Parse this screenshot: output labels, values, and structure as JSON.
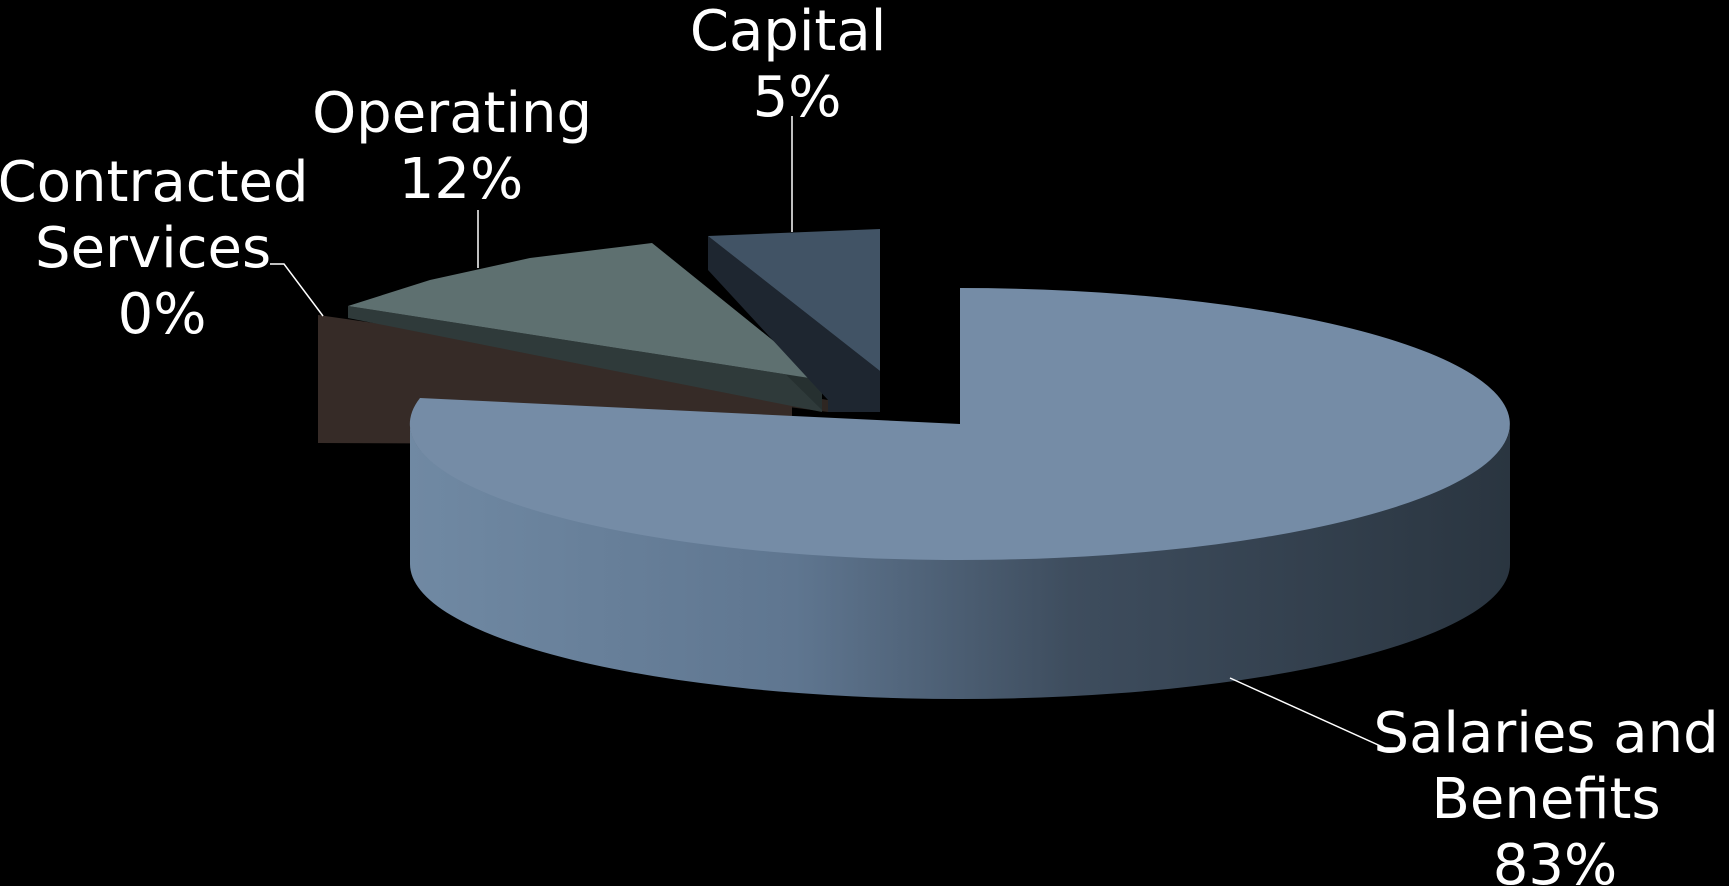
{
  "chart_data": {
    "type": "pie",
    "style": "3d-exploded",
    "title": "",
    "slices": [
      {
        "name": "Salaries and Benefits",
        "label_lines": [
          "Salaries and",
          "Benefits"
        ],
        "value_label": "83%",
        "value": 83,
        "color": "#758ca6"
      },
      {
        "name": "Contracted Services",
        "label_lines": [
          "Contracted",
          "Services"
        ],
        "value_label": "0%",
        "value": 0,
        "color": "#362b27"
      },
      {
        "name": "Operating",
        "label_lines": [
          "Operating"
        ],
        "value_label": "12%",
        "value": 12,
        "color": "#5e7070"
      },
      {
        "name": "Capital",
        "label_lines": [
          "Capital"
        ],
        "value_label": "5%",
        "value": 5,
        "color": "#415365"
      }
    ],
    "background": "#000000",
    "label_color": "#ffffff"
  }
}
